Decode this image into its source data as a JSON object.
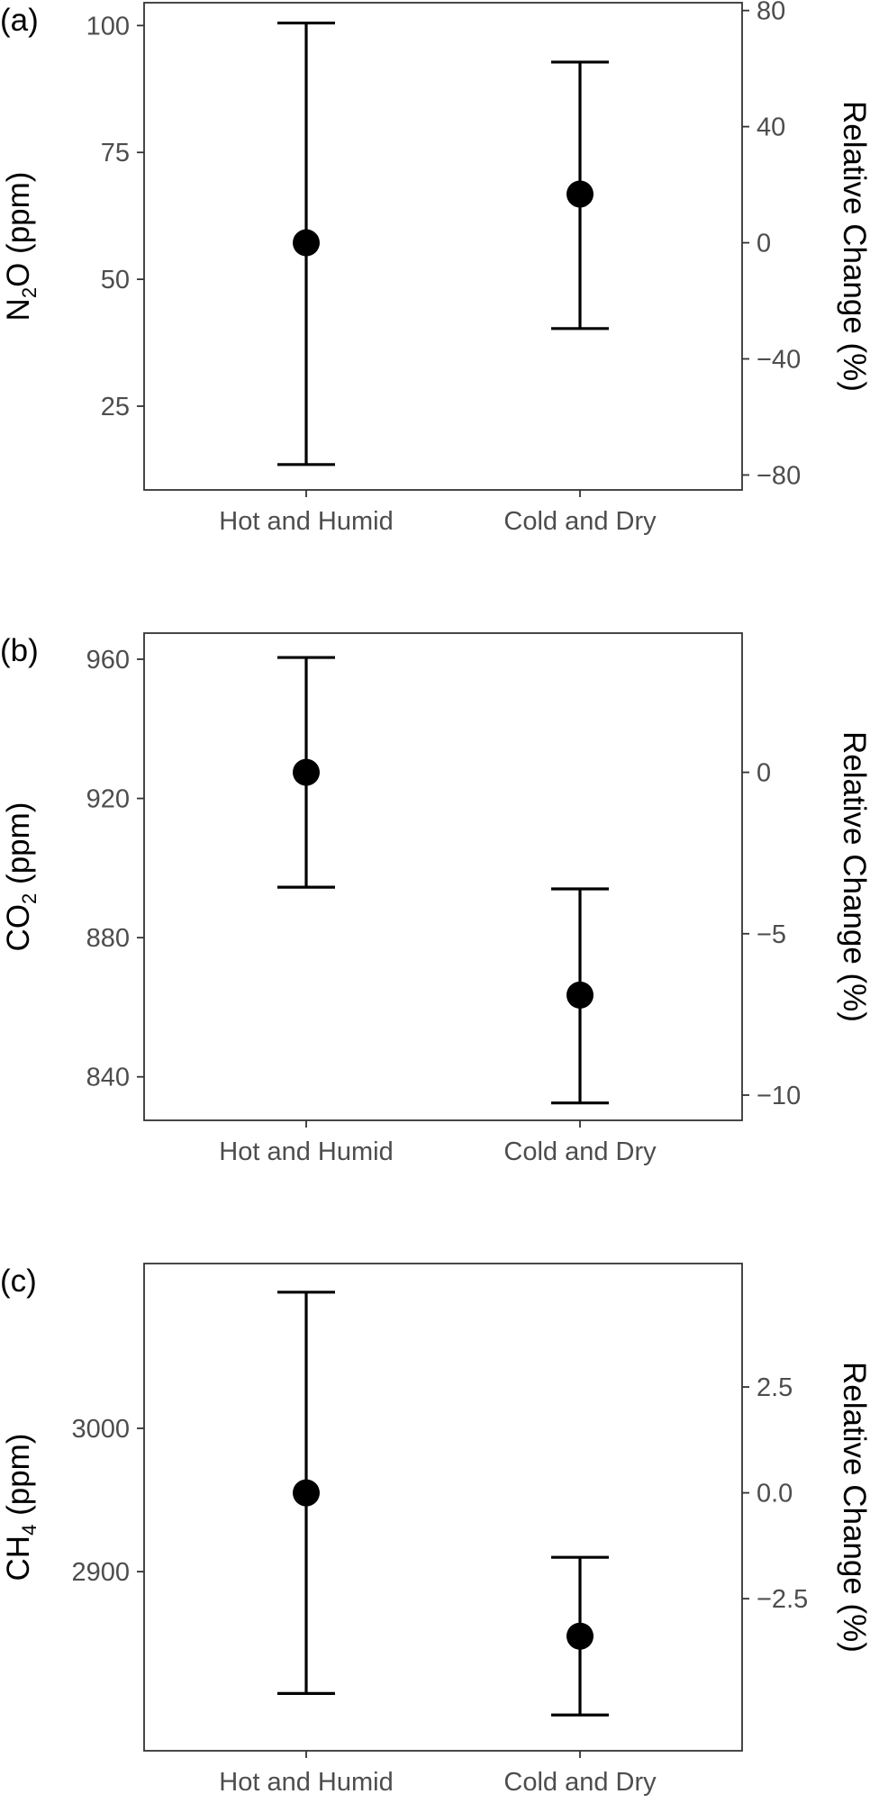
{
  "chart_data": [
    {
      "type": "scatter",
      "panel_tag": "(a)",
      "ylabel": {
        "pre": "N",
        "sub": "2",
        "post": "O (ppm)"
      },
      "y2label": "Relative Change (%)",
      "categories": [
        "Hot and Humid",
        "Cold and Dry"
      ],
      "points": [
        {
          "category": "Hot and Humid",
          "mean": 57.2,
          "lower": 13.5,
          "upper": 100.5
        },
        {
          "category": "Cold and Dry",
          "mean": 66.8,
          "lower": 40.3,
          "upper": 92.8
        }
      ],
      "ylim": [
        8.5,
        104.5
      ],
      "yticks": [
        25,
        50,
        75,
        100
      ],
      "y2ticks": [
        "80",
        "40",
        "0",
        "−40",
        "−80"
      ],
      "y2tick_values": [
        80,
        40,
        0,
        -40,
        -80
      ],
      "y2_reference": 57.2,
      "grid": false
    },
    {
      "type": "scatter",
      "panel_tag": "(b)",
      "ylabel": {
        "pre": "CO",
        "sub": "2",
        "post": " (ppm)"
      },
      "y2label": "Relative Change (%)",
      "categories": [
        "Hot and Humid",
        "Cold and Dry"
      ],
      "points": [
        {
          "category": "Hot and Humid",
          "mean": 927.5,
          "lower": 894.5,
          "upper": 960.5
        },
        {
          "category": "Cold and Dry",
          "mean": 863.5,
          "lower": 832.5,
          "upper": 894.0
        }
      ],
      "ylim": [
        827.5,
        967.5
      ],
      "yticks": [
        840,
        880,
        920,
        960
      ],
      "y2ticks": [
        "0",
        "−5",
        "−10"
      ],
      "y2tick_values": [
        0,
        -5,
        -10
      ],
      "y2_reference": 927.5,
      "grid": false
    },
    {
      "type": "scatter",
      "panel_tag": "(c)",
      "ylabel": {
        "pre": "CH",
        "sub": "4",
        "post": " (ppm)"
      },
      "y2label": "Relative Change (%)",
      "categories": [
        "Hot and Humid",
        "Cold and Dry"
      ],
      "points": [
        {
          "category": "Hot and Humid",
          "mean": 2955,
          "lower": 2815,
          "upper": 3095
        },
        {
          "category": "Cold and Dry",
          "mean": 2855,
          "lower": 2800,
          "upper": 2910
        }
      ],
      "ylim": [
        2775,
        3115
      ],
      "yticks": [
        2900,
        3000
      ],
      "y2ticks": [
        "2.5",
        "0.0",
        "−2.5"
      ],
      "y2tick_values": [
        2.5,
        0.0,
        -2.5
      ],
      "y2_reference": 2955,
      "grid": false
    }
  ]
}
